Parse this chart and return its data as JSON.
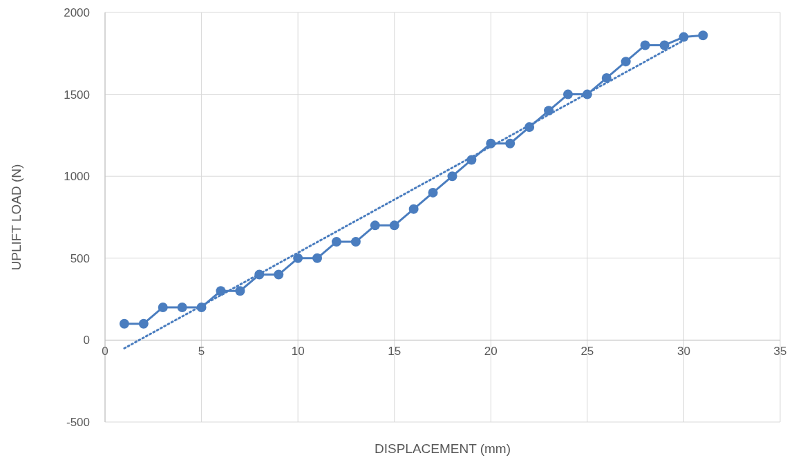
{
  "chart_data": {
    "type": "line",
    "xlabel": "DISPLACEMENT (mm)",
    "ylabel": "UPLIFT LOAD (N)",
    "xlim": [
      0,
      35
    ],
    "xticks": [
      0,
      5,
      10,
      15,
      20,
      25,
      30,
      35
    ],
    "ylim": [
      -500,
      2000
    ],
    "yticks": [
      -500,
      0,
      500,
      1000,
      1500,
      2000
    ],
    "grid": true,
    "series": [
      {
        "color": "#4a7dbf",
        "marker": "circle",
        "line_style": "solid",
        "x": [
          1,
          2,
          3,
          4,
          5,
          6,
          7,
          8,
          9,
          10,
          11,
          12,
          13,
          14,
          15,
          16,
          17,
          18,
          19,
          20,
          21,
          22,
          23,
          24,
          25,
          26,
          27,
          28,
          29,
          30,
          31
        ],
        "values": [
          100,
          100,
          200,
          200,
          200,
          300,
          300,
          400,
          400,
          500,
          500,
          600,
          600,
          700,
          700,
          800,
          900,
          1000,
          1100,
          1200,
          1200,
          1300,
          1400,
          1500,
          1500,
          1600,
          1700,
          1800,
          1800,
          1850,
          1860
        ]
      },
      {
        "color": "#4a7dbf",
        "marker": "none",
        "line_style": "dotted",
        "x": [
          1,
          30
        ],
        "values": [
          -50,
          1830
        ]
      }
    ]
  }
}
